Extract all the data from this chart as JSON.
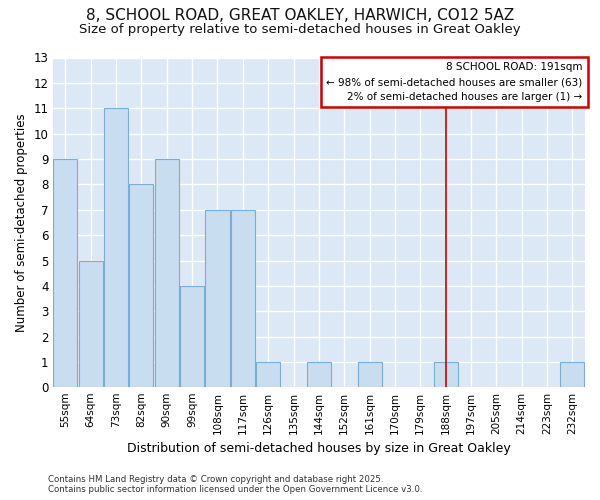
{
  "title1": "8, SCHOOL ROAD, GREAT OAKLEY, HARWICH, CO12 5AZ",
  "title2": "Size of property relative to semi-detached houses in Great Oakley",
  "xlabel": "Distribution of semi-detached houses by size in Great Oakley",
  "ylabel": "Number of semi-detached properties",
  "categories": [
    "55sqm",
    "64sqm",
    "73sqm",
    "82sqm",
    "90sqm",
    "99sqm",
    "108sqm",
    "117sqm",
    "126sqm",
    "135sqm",
    "144sqm",
    "152sqm",
    "161sqm",
    "170sqm",
    "179sqm",
    "188sqm",
    "197sqm",
    "205sqm",
    "214sqm",
    "223sqm",
    "232sqm"
  ],
  "values": [
    9,
    5,
    11,
    8,
    9,
    4,
    7,
    7,
    1,
    0,
    1,
    0,
    1,
    0,
    0,
    1,
    0,
    0,
    0,
    0,
    1
  ],
  "bar_color": "#c8ddf0",
  "bar_edge_color": "#7aadd4",
  "highlight_index": 15,
  "highlight_line_color": "#cc0000",
  "annotation_title": "8 SCHOOL ROAD: 191sqm",
  "annotation_line1": "← 98% of semi-detached houses are smaller (63)",
  "annotation_line2": "2% of semi-detached houses are larger (1) →",
  "annotation_box_color": "#cc0000",
  "ylim": [
    0,
    13
  ],
  "yticks": [
    0,
    1,
    2,
    3,
    4,
    5,
    6,
    7,
    8,
    9,
    10,
    11,
    12,
    13
  ],
  "footer": "Contains HM Land Registry data © Crown copyright and database right 2025.\nContains public sector information licensed under the Open Government Licence v3.0.",
  "fig_background": "#ffffff",
  "axes_background": "#dce8f5",
  "grid_color": "#ffffff",
  "title_fontsize": 11,
  "subtitle_fontsize": 9.5
}
